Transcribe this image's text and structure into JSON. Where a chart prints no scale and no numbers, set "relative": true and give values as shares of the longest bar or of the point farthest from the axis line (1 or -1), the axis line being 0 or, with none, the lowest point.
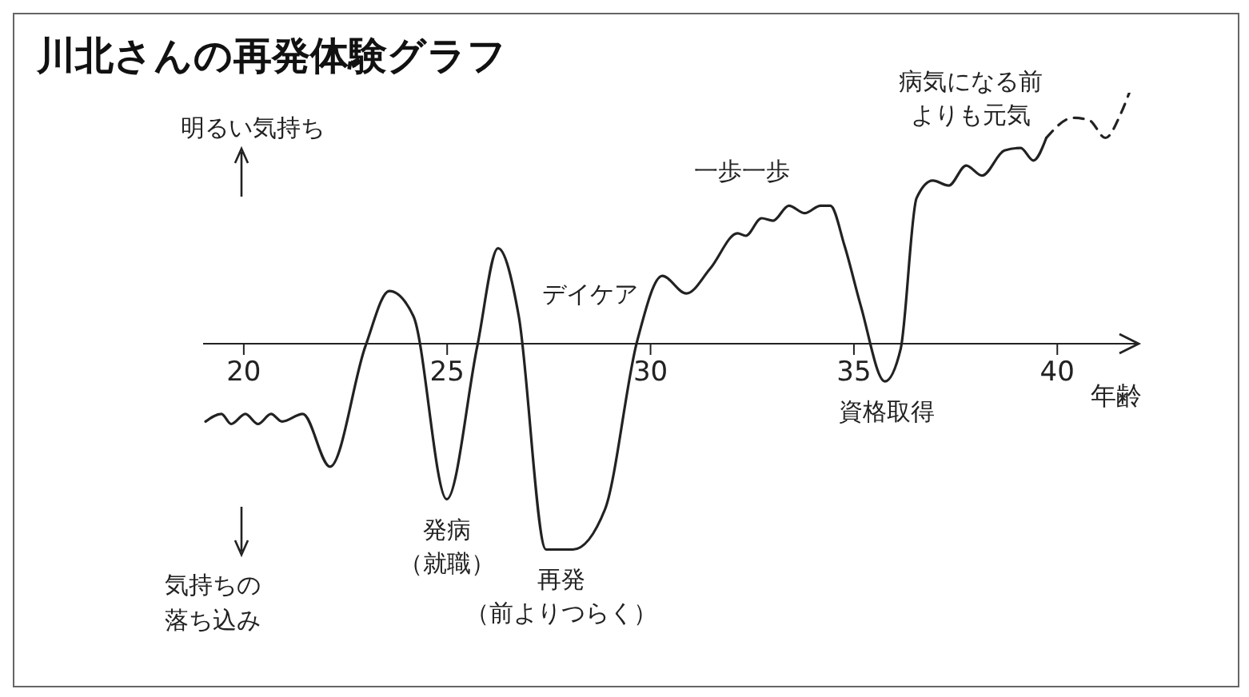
{
  "chart_data": {
    "type": "line",
    "title": "川北さんの再発体験グラフ",
    "xlabel": "年齢",
    "relative": true,
    "xlim": [
      19,
      42
    ],
    "xticks": [
      20,
      25,
      30,
      35,
      40
    ],
    "marker": "none",
    "series": [
      {
        "color": "#222222",
        "line_style": "solid",
        "x": [
          19.06,
          19.45,
          19.69,
          20.04,
          20.35,
          20.67,
          20.94,
          21.45,
          22.12,
          22.99,
          23.58,
          24.17,
          24.99,
          25.74,
          26.25,
          26.76,
          27.43,
          28.09,
          28.88,
          29.67,
          30.29,
          30.88,
          31.47,
          32.14,
          32.34,
          32.73,
          33.01,
          33.4,
          33.79,
          34.18,
          34.42,
          34.77,
          35.17,
          35.76,
          36.15,
          36.54,
          36.94,
          37.33,
          37.76,
          38.15,
          38.7,
          39.1,
          39.41,
          39.73
        ],
        "values": [
          -0.31,
          -0.28,
          -0.32,
          -0.28,
          -0.32,
          -0.28,
          -0.31,
          -0.28,
          -0.49,
          -0.01,
          0.21,
          0.11,
          -0.62,
          -0.01,
          0.38,
          0.11,
          -0.82,
          -0.82,
          -0.66,
          0.01,
          0.27,
          0.2,
          0.3,
          0.44,
          0.43,
          0.5,
          0.49,
          0.55,
          0.52,
          0.55,
          0.55,
          0.39,
          0.15,
          -0.15,
          -0.02,
          0.58,
          0.65,
          0.63,
          0.71,
          0.67,
          0.77,
          0.78,
          0.73,
          0.82
        ]
      },
      {
        "color": "#222222",
        "line_style": "dashed",
        "x": [
          39.73,
          40.39,
          40.79,
          41.18,
          41.57,
          41.77
        ],
        "values": [
          0.82,
          0.9,
          0.89,
          0.82,
          0.92,
          1
        ]
      }
    ],
    "annotations": [
      "明るい気持ち",
      "気持ちの落ち込み",
      "デイケア",
      "一歩一歩",
      "病気になる前よりも元気",
      {
        "text": "発病（就職）",
        "x": 25,
        "y": -0.62
      },
      {
        "text": "再発（前よりつらく）",
        "x": 27.8,
        "y": -0.82
      },
      {
        "text": "資格取得",
        "x": 35.8,
        "y": -0.15
      }
    ]
  }
}
